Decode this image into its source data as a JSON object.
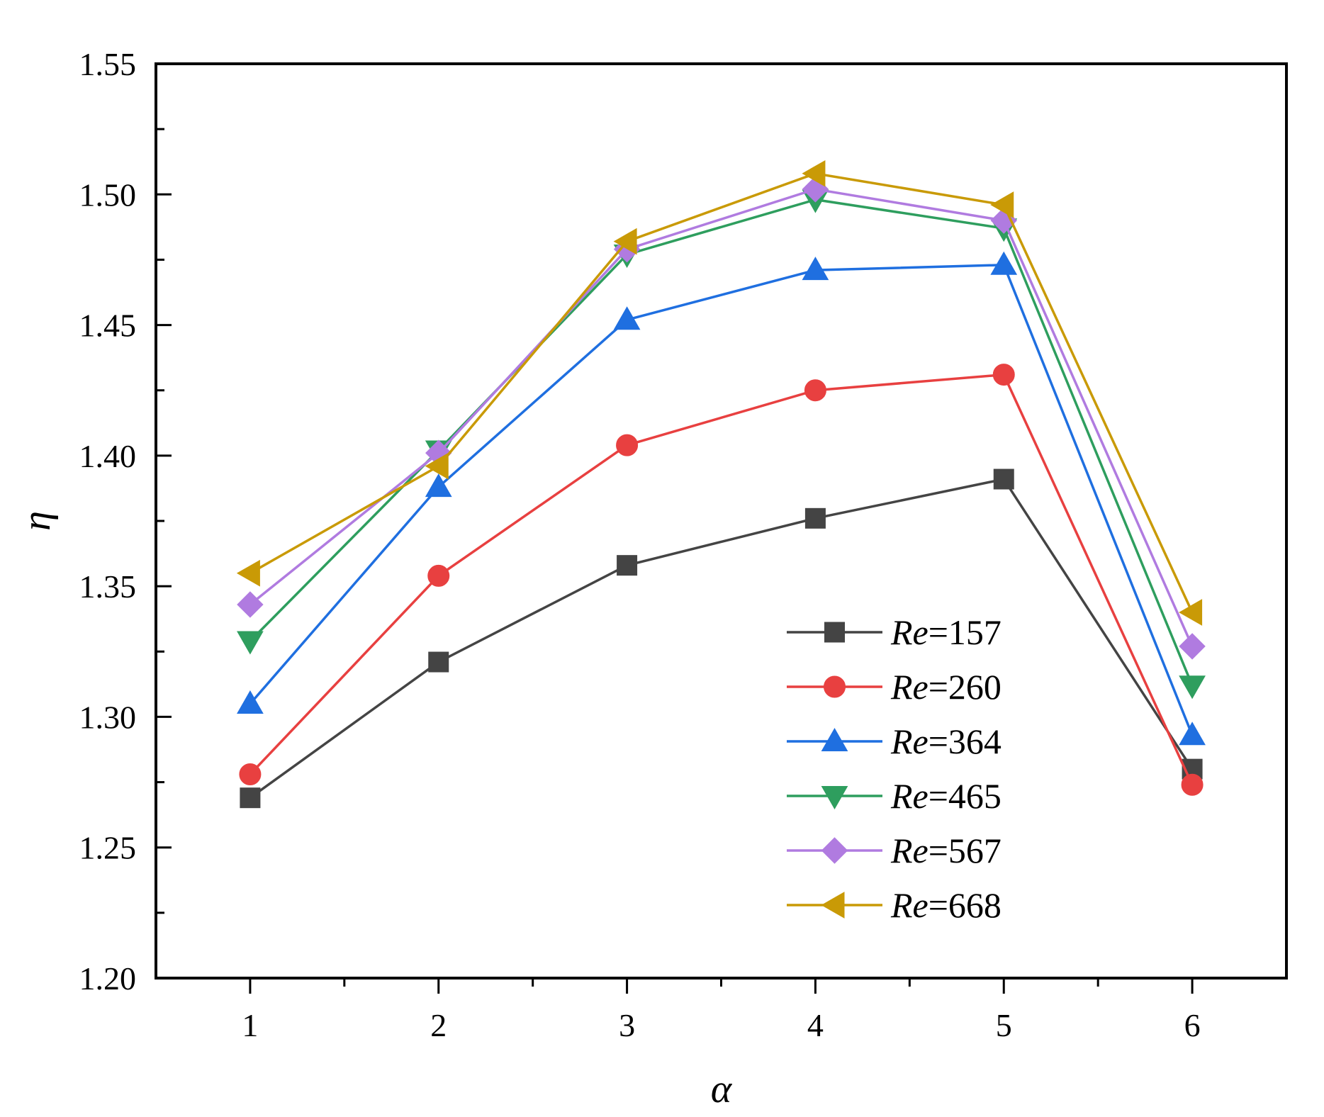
{
  "chart_data": {
    "type": "line",
    "title": "",
    "xlabel": "α",
    "ylabel": "η",
    "x": [
      1,
      2,
      3,
      4,
      5,
      6
    ],
    "xlim": [
      0.5,
      6.5
    ],
    "ylim": [
      1.2,
      1.55
    ],
    "x_ticks": [
      "1",
      "2",
      "3",
      "4",
      "5",
      "6"
    ],
    "y_ticks": [
      "1.20",
      "1.25",
      "1.30",
      "1.35",
      "1.40",
      "1.45",
      "1.50",
      "1.55"
    ],
    "grid": false,
    "legend_position": "bottom-right",
    "series": [
      {
        "name": "Re=157",
        "name_prefix": "Re",
        "name_suffix": "=157",
        "color": "#444444",
        "marker": "square",
        "values": [
          1.269,
          1.321,
          1.358,
          1.376,
          1.391,
          1.28
        ]
      },
      {
        "name": "Re=260",
        "name_prefix": "Re",
        "name_suffix": "=260",
        "color": "#e84040",
        "marker": "circle",
        "values": [
          1.278,
          1.354,
          1.404,
          1.425,
          1.431,
          1.274
        ]
      },
      {
        "name": "Re=364",
        "name_prefix": "Re",
        "name_suffix": "=364",
        "color": "#1f6fe0",
        "marker": "triangle-up",
        "values": [
          1.305,
          1.388,
          1.452,
          1.471,
          1.473,
          1.293
        ]
      },
      {
        "name": "Re=465",
        "name_prefix": "Re",
        "name_suffix": "=465",
        "color": "#2e9e5e",
        "marker": "triangle-down",
        "values": [
          1.329,
          1.402,
          1.477,
          1.498,
          1.487,
          1.312
        ]
      },
      {
        "name": "Re=567",
        "name_prefix": "Re",
        "name_suffix": "=567",
        "color": "#b07be0",
        "marker": "diamond",
        "values": [
          1.343,
          1.401,
          1.479,
          1.502,
          1.49,
          1.327
        ]
      },
      {
        "name": "Re=668",
        "name_prefix": "Re",
        "name_suffix": "=668",
        "color": "#c99a06",
        "marker": "triangle-left",
        "values": [
          1.355,
          1.396,
          1.482,
          1.508,
          1.496,
          1.34
        ]
      }
    ]
  }
}
